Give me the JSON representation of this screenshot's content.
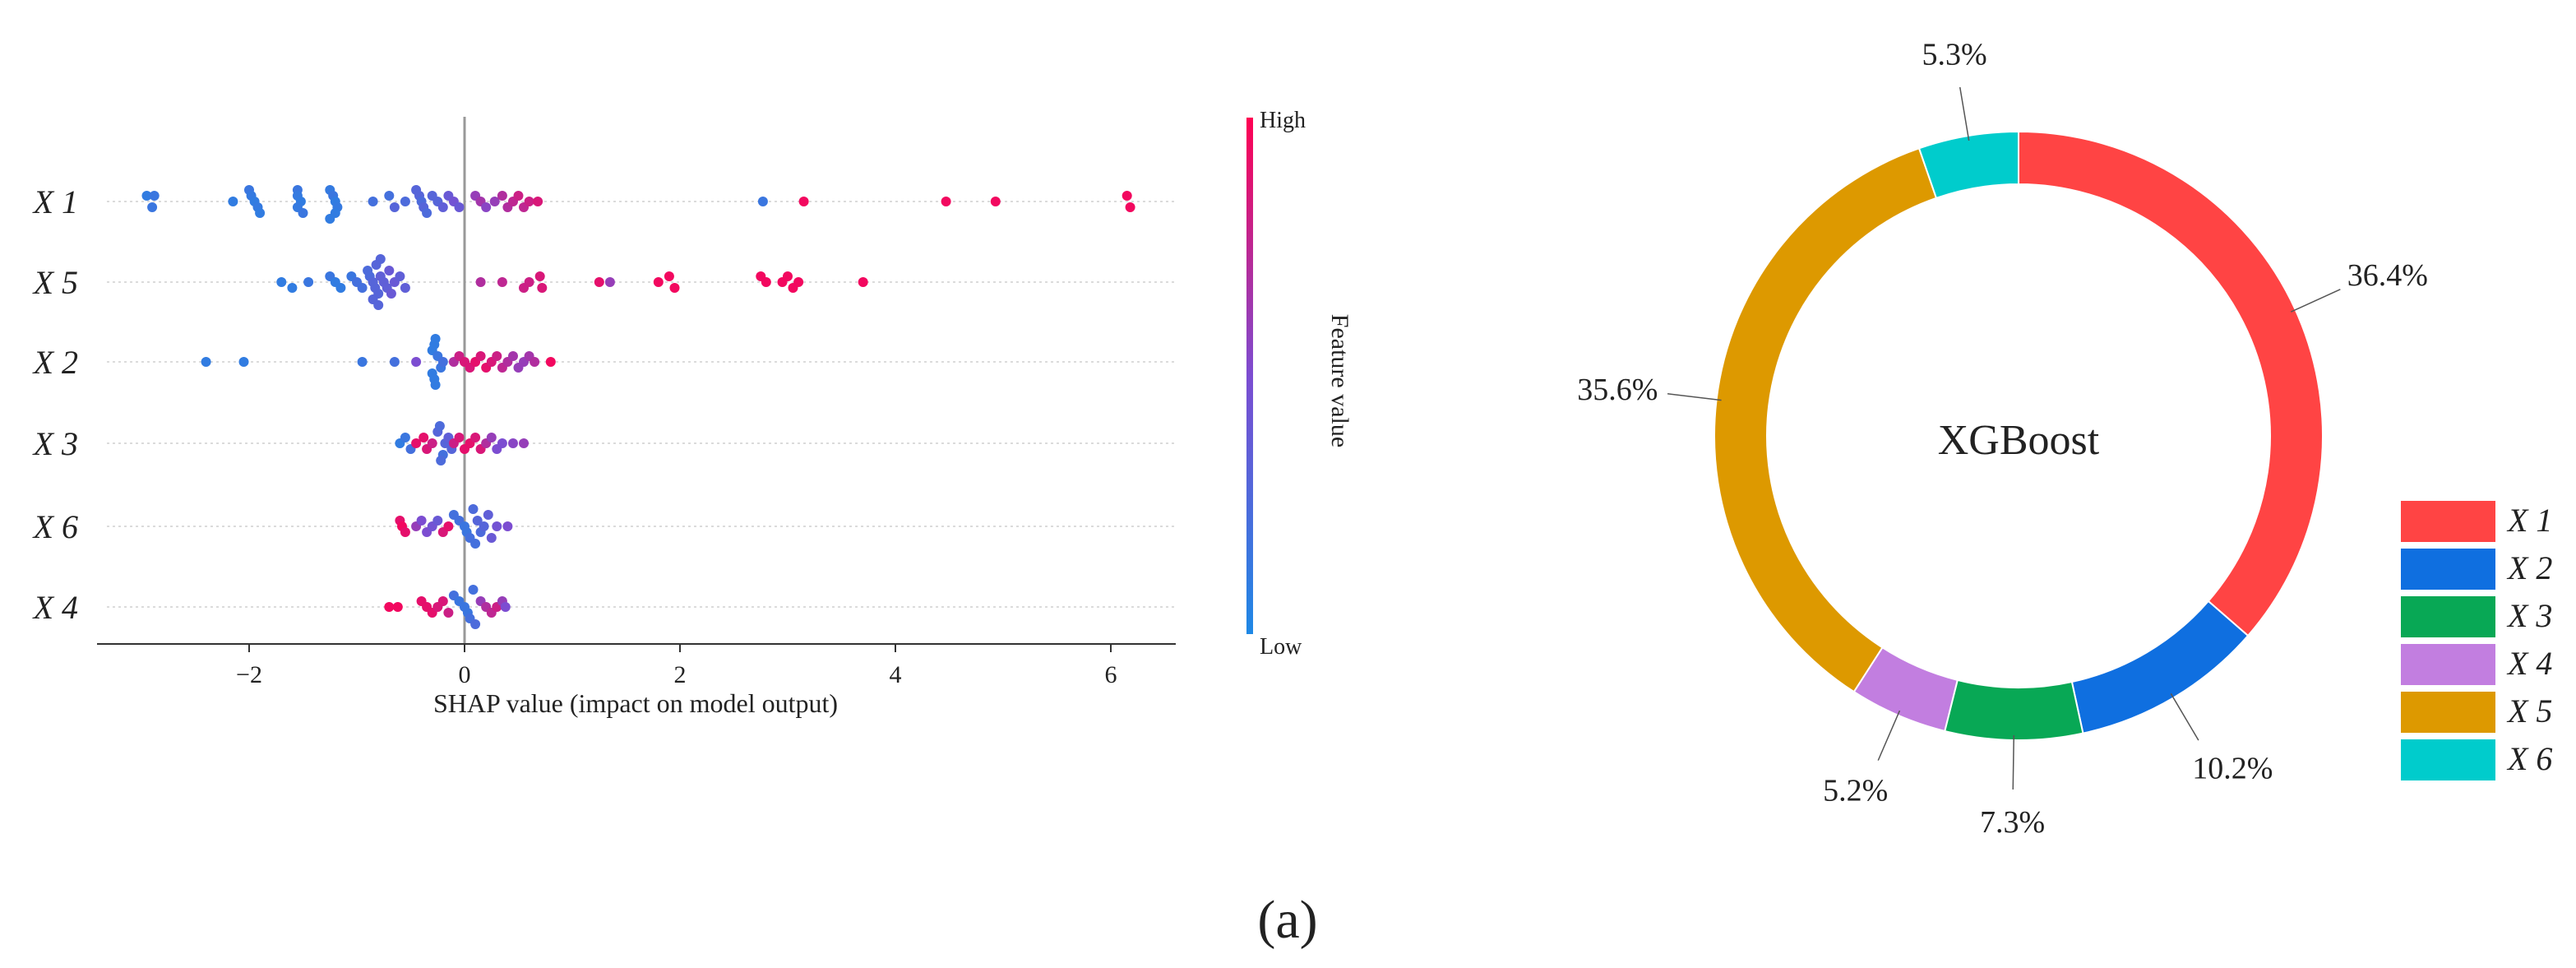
{
  "figure": {
    "panel_label": "(a)"
  },
  "chart_data": [
    {
      "type": "scatter",
      "subtype": "shap-beeswarm",
      "title": "",
      "xlabel": "SHAP value (impact on model output)",
      "ylabel": "",
      "xlim": [
        -3.5,
        6.7
      ],
      "x_ticks": [
        {
          "value": -2,
          "label": "−2"
        },
        {
          "value": 0,
          "label": "0"
        },
        {
          "value": 2,
          "label": "2"
        },
        {
          "value": 4,
          "label": "4"
        },
        {
          "value": 6,
          "label": "6"
        }
      ],
      "features": [
        {
          "name": "X 1",
          "points": [
            [
              -2.95,
              0.1,
              -1
            ],
            [
              -2.88,
              0.15,
              -1
            ],
            [
              -2.9,
              0.15,
              1
            ],
            [
              -2.15,
              0.1,
              0
            ],
            [
              -2.0,
              0.15,
              -2
            ],
            [
              -1.98,
              0.12,
              -1
            ],
            [
              -1.95,
              0.1,
              0
            ],
            [
              -1.92,
              0.12,
              1
            ],
            [
              -1.9,
              0.1,
              2
            ],
            [
              -1.55,
              0.15,
              -2
            ],
            [
              -1.55,
              0.12,
              -1
            ],
            [
              -1.52,
              0.1,
              0
            ],
            [
              -1.55,
              0.12,
              1
            ],
            [
              -1.5,
              0.15,
              2
            ],
            [
              -1.25,
              0.12,
              -2
            ],
            [
              -1.22,
              0.15,
              -1
            ],
            [
              -1.2,
              0.1,
              0
            ],
            [
              -1.18,
              0.12,
              1
            ],
            [
              -1.2,
              0.1,
              2
            ],
            [
              -1.25,
              0.1,
              3
            ],
            [
              -0.85,
              0.2,
              0
            ],
            [
              -0.7,
              0.2,
              -1
            ],
            [
              -0.65,
              0.3,
              1
            ],
            [
              -0.55,
              0.25,
              0
            ],
            [
              -0.45,
              0.3,
              -2
            ],
            [
              -0.42,
              0.3,
              -1
            ],
            [
              -0.4,
              0.25,
              0
            ],
            [
              -0.38,
              0.3,
              1
            ],
            [
              -0.35,
              0.25,
              2
            ],
            [
              -0.3,
              0.3,
              -1
            ],
            [
              -0.25,
              0.3,
              0
            ],
            [
              -0.2,
              0.35,
              1
            ],
            [
              -0.15,
              0.4,
              -1
            ],
            [
              -0.1,
              0.45,
              0
            ],
            [
              -0.05,
              0.4,
              1
            ],
            [
              0.1,
              0.6,
              -1
            ],
            [
              0.15,
              0.65,
              0
            ],
            [
              0.2,
              0.55,
              1
            ],
            [
              0.28,
              0.6,
              0
            ],
            [
              0.35,
              0.7,
              -1
            ],
            [
              0.4,
              0.7,
              1
            ],
            [
              0.45,
              0.75,
              0
            ],
            [
              0.5,
              0.8,
              -1
            ],
            [
              0.55,
              0.75,
              1
            ],
            [
              0.6,
              0.8,
              0
            ],
            [
              0.68,
              0.85,
              0
            ],
            [
              2.77,
              0.15,
              0
            ],
            [
              3.15,
              0.95,
              0
            ],
            [
              4.47,
              0.95,
              0
            ],
            [
              4.93,
              0.95,
              0
            ],
            [
              6.15,
              0.95,
              -1
            ],
            [
              6.18,
              0.95,
              1
            ]
          ]
        },
        {
          "name": "X 5",
          "points": [
            [
              -1.7,
              0.1,
              0
            ],
            [
              -1.6,
              0.1,
              1
            ],
            [
              -1.45,
              0.15,
              0
            ],
            [
              -1.25,
              0.15,
              -1
            ],
            [
              -1.2,
              0.1,
              0
            ],
            [
              -1.15,
              0.1,
              1
            ],
            [
              -1.05,
              0.15,
              -1
            ],
            [
              -1.0,
              0.2,
              0
            ],
            [
              -0.95,
              0.2,
              1
            ],
            [
              -0.9,
              0.25,
              -2
            ],
            [
              -0.88,
              0.25,
              -1
            ],
            [
              -0.85,
              0.3,
              0
            ],
            [
              -0.83,
              0.3,
              1
            ],
            [
              -0.8,
              0.3,
              2
            ],
            [
              -0.78,
              0.35,
              -1
            ],
            [
              -0.75,
              0.35,
              0
            ],
            [
              -0.72,
              0.35,
              1
            ],
            [
              -0.7,
              0.4,
              -2
            ],
            [
              -0.68,
              0.4,
              2
            ],
            [
              -0.65,
              0.4,
              0
            ],
            [
              -0.6,
              0.35,
              -1
            ],
            [
              -0.55,
              0.35,
              1
            ],
            [
              -0.85,
              0.3,
              3
            ],
            [
              -0.82,
              0.3,
              -3
            ],
            [
              -0.8,
              0.3,
              4
            ],
            [
              -0.78,
              0.3,
              -4
            ],
            [
              0.15,
              0.7,
              0
            ],
            [
              0.35,
              0.75,
              0
            ],
            [
              0.55,
              0.8,
              1
            ],
            [
              0.6,
              0.8,
              0
            ],
            [
              0.7,
              0.85,
              -1
            ],
            [
              0.72,
              0.85,
              1
            ],
            [
              1.25,
              0.9,
              0
            ],
            [
              1.35,
              0.6,
              0
            ],
            [
              1.8,
              0.95,
              0
            ],
            [
              1.9,
              0.95,
              -1
            ],
            [
              1.95,
              0.95,
              1
            ],
            [
              2.75,
              0.95,
              -1
            ],
            [
              2.8,
              0.95,
              0
            ],
            [
              2.95,
              0.95,
              0
            ],
            [
              3.0,
              0.95,
              -1
            ],
            [
              3.05,
              0.95,
              1
            ],
            [
              3.1,
              0.95,
              0
            ],
            [
              3.7,
              0.95,
              0
            ]
          ]
        },
        {
          "name": "X 2",
          "points": [
            [
              -2.4,
              0.1,
              0
            ],
            [
              -2.05,
              0.1,
              0
            ],
            [
              -0.95,
              0.15,
              0
            ],
            [
              -0.65,
              0.2,
              0
            ],
            [
              -0.45,
              0.5,
              0
            ],
            [
              -0.3,
              0.1,
              -2
            ],
            [
              -0.28,
              0.1,
              -3
            ],
            [
              -0.27,
              0.1,
              -4
            ],
            [
              -0.3,
              0.1,
              2
            ],
            [
              -0.28,
              0.1,
              3
            ],
            [
              -0.27,
              0.1,
              4
            ],
            [
              -0.25,
              0.15,
              -1
            ],
            [
              -0.22,
              0.15,
              1
            ],
            [
              -0.2,
              0.2,
              0
            ],
            [
              -0.1,
              0.7,
              0
            ],
            [
              -0.05,
              0.8,
              -1
            ],
            [
              0.0,
              0.85,
              0
            ],
            [
              0.05,
              0.85,
              1
            ],
            [
              0.1,
              0.9,
              0
            ],
            [
              0.15,
              0.85,
              -1
            ],
            [
              0.2,
              0.9,
              1
            ],
            [
              0.25,
              0.85,
              0
            ],
            [
              0.3,
              0.8,
              -1
            ],
            [
              0.35,
              0.75,
              1
            ],
            [
              0.4,
              0.7,
              0
            ],
            [
              0.45,
              0.65,
              -1
            ],
            [
              0.5,
              0.6,
              1
            ],
            [
              0.55,
              0.6,
              0
            ],
            [
              0.6,
              0.65,
              -1
            ],
            [
              0.65,
              0.7,
              0
            ],
            [
              0.8,
              0.95,
              0
            ]
          ]
        },
        {
          "name": "X 3",
          "points": [
            [
              -0.6,
              0.1,
              0
            ],
            [
              -0.55,
              0.15,
              -1
            ],
            [
              -0.5,
              0.2,
              1
            ],
            [
              -0.45,
              0.9,
              0
            ],
            [
              -0.38,
              0.9,
              -1
            ],
            [
              -0.35,
              0.85,
              1
            ],
            [
              -0.3,
              0.8,
              0
            ],
            [
              -0.25,
              0.3,
              -2
            ],
            [
              -0.23,
              0.25,
              -3
            ],
            [
              -0.2,
              0.2,
              2
            ],
            [
              -0.22,
              0.25,
              3
            ],
            [
              -0.18,
              0.3,
              0
            ],
            [
              -0.15,
              0.35,
              -1
            ],
            [
              -0.12,
              0.3,
              1
            ],
            [
              -0.1,
              0.8,
              0
            ],
            [
              -0.05,
              0.85,
              -1
            ],
            [
              0.0,
              0.9,
              1
            ],
            [
              0.05,
              0.9,
              0
            ],
            [
              0.1,
              0.85,
              -1
            ],
            [
              0.15,
              0.85,
              1
            ],
            [
              0.2,
              0.7,
              0
            ],
            [
              0.25,
              0.6,
              -1
            ],
            [
              0.3,
              0.5,
              1
            ],
            [
              0.35,
              0.5,
              0
            ],
            [
              0.45,
              0.55,
              0
            ],
            [
              0.55,
              0.6,
              0
            ]
          ]
        },
        {
          "name": "X 6",
          "points": [
            [
              -0.6,
              0.9,
              -1
            ],
            [
              -0.58,
              0.95,
              0
            ],
            [
              -0.55,
              0.9,
              1
            ],
            [
              -0.45,
              0.6,
              0
            ],
            [
              -0.4,
              0.5,
              -1
            ],
            [
              -0.35,
              0.5,
              1
            ],
            [
              -0.3,
              0.45,
              0
            ],
            [
              -0.25,
              0.4,
              -1
            ],
            [
              -0.2,
              0.85,
              1
            ],
            [
              -0.15,
              0.9,
              0
            ],
            [
              -0.1,
              0.2,
              -2
            ],
            [
              -0.05,
              0.2,
              -1
            ],
            [
              0.0,
              0.15,
              0
            ],
            [
              0.02,
              0.15,
              1
            ],
            [
              0.05,
              0.2,
              2
            ],
            [
              0.08,
              0.25,
              -3
            ],
            [
              0.1,
              0.2,
              3
            ],
            [
              0.12,
              0.3,
              -1
            ],
            [
              0.15,
              0.25,
              1
            ],
            [
              0.18,
              0.3,
              0
            ],
            [
              0.22,
              0.35,
              -2
            ],
            [
              0.25,
              0.4,
              2
            ],
            [
              0.3,
              0.45,
              0
            ],
            [
              0.4,
              0.5,
              0
            ]
          ]
        },
        {
          "name": "X 4",
          "points": [
            [
              -0.7,
              0.95,
              0
            ],
            [
              -0.62,
              0.95,
              0
            ],
            [
              -0.4,
              0.9,
              -1
            ],
            [
              -0.35,
              0.9,
              0
            ],
            [
              -0.3,
              0.9,
              1
            ],
            [
              -0.25,
              0.85,
              0
            ],
            [
              -0.2,
              0.85,
              -1
            ],
            [
              -0.15,
              0.8,
              1
            ],
            [
              -0.1,
              0.2,
              -2
            ],
            [
              -0.05,
              0.15,
              -1
            ],
            [
              0.0,
              0.15,
              0
            ],
            [
              0.03,
              0.15,
              1
            ],
            [
              0.05,
              0.2,
              2
            ],
            [
              0.08,
              0.2,
              -3
            ],
            [
              0.1,
              0.25,
              3
            ],
            [
              0.15,
              0.6,
              -1
            ],
            [
              0.2,
              0.7,
              0
            ],
            [
              0.25,
              0.75,
              1
            ],
            [
              0.3,
              0.8,
              0
            ],
            [
              0.35,
              0.6,
              -1
            ],
            [
              0.38,
              0.5,
              0
            ]
          ]
        }
      ],
      "colorbar": {
        "label": "Feature value",
        "high_label": "High",
        "low_label": "Low",
        "low_color": "#1e88e5",
        "mid_color": "#7c4dd1",
        "high_color": "#ff0052"
      }
    },
    {
      "type": "pie",
      "subtype": "donut",
      "center_label": "XGBoost",
      "slices": [
        {
          "label": "X 1",
          "value": 36.4,
          "value_label": "36.4%",
          "color": "#ff4444"
        },
        {
          "label": "X 2",
          "value": 10.2,
          "value_label": "10.2%",
          "color": "#0f6fe0"
        },
        {
          "label": "X 3",
          "value": 7.3,
          "value_label": "7.3%",
          "color": "#08a855"
        },
        {
          "label": "X 4",
          "value": 5.2,
          "value_label": "5.2%",
          "color": "#c27ee0"
        },
        {
          "label": "X 5",
          "value": 35.6,
          "value_label": "35.6%",
          "color": "#dd9900"
        },
        {
          "label": "X 6",
          "value": 5.3,
          "value_label": "5.3%",
          "color": "#00cccc"
        }
      ],
      "legend_position": "right"
    }
  ]
}
